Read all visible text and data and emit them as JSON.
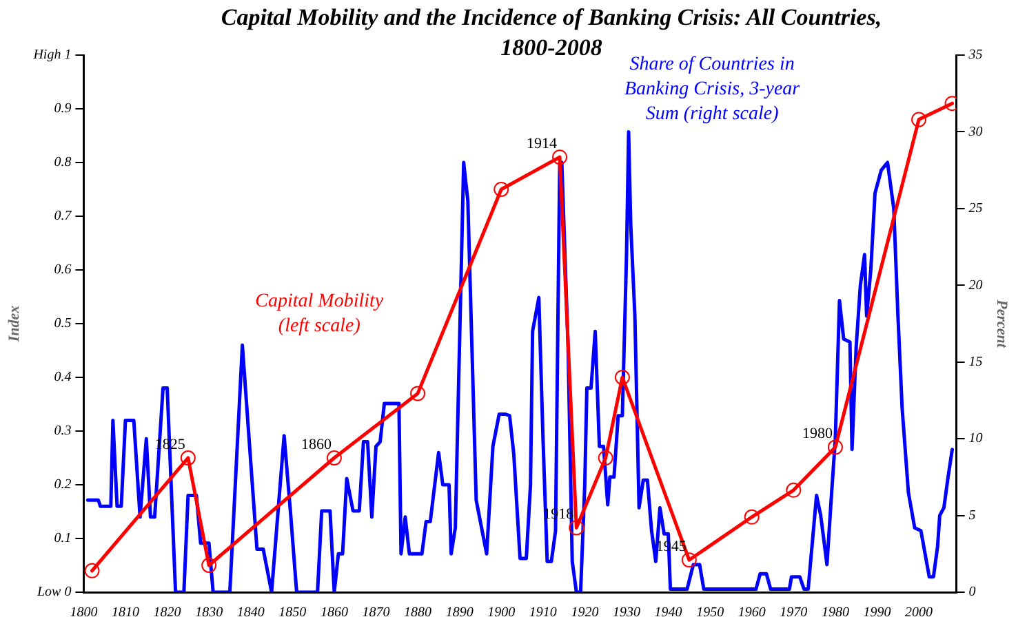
{
  "chart_data": {
    "type": "line",
    "title": "Capital Mobility and the Incidence of Banking Crisis: All Countries, 1800-2008",
    "ylabel": "Index",
    "y2label": "Percent",
    "xlim": [
      1800,
      2009
    ],
    "xticks": [
      1800,
      1810,
      1820,
      1830,
      1840,
      1850,
      1860,
      1870,
      1880,
      1890,
      1900,
      1910,
      1920,
      1930,
      1940,
      1950,
      1960,
      1970,
      1980,
      1990,
      2000
    ],
    "ylim": [
      0,
      1
    ],
    "yticks": [
      {
        "value": 0,
        "label": "Low 0"
      },
      0.1,
      0.2,
      0.3,
      0.4,
      0.5,
      0.6,
      0.7,
      0.8,
      0.9,
      {
        "value": 1,
        "label": "High 1"
      }
    ],
    "y2lim": [
      0,
      35
    ],
    "y2ticks": [
      0,
      5,
      10,
      15,
      20,
      25,
      30,
      35
    ],
    "grid": false,
    "legend": false,
    "series": [
      {
        "name": "Share of Countries in Banking Crisis, 3-year Sum (right scale)",
        "color": "#0000ff",
        "axis": "y2",
        "marker": "none",
        "x": [
          1801,
          1803.5,
          1804,
          1806.5,
          1807,
          1808,
          1809,
          1810,
          1812,
          1813.5,
          1815,
          1816,
          1817,
          1819,
          1820,
          1822,
          1824,
          1825,
          1827,
          1828,
          1830,
          1831,
          1835,
          1838,
          1841.5,
          1843,
          1845,
          1848,
          1849.5,
          1851,
          1856,
          1857,
          1859,
          1860,
          1861,
          1862,
          1863,
          1864.5,
          1866,
          1867,
          1868,
          1869,
          1870,
          1871,
          1872,
          1875.5,
          1876,
          1877,
          1878,
          1881,
          1882,
          1883,
          1885,
          1886,
          1887.5,
          1888,
          1889,
          1891,
          1892,
          1894,
          1895,
          1896.5,
          1898,
          1899.5,
          1901,
          1902,
          1903,
          1904.5,
          1906,
          1907,
          1907.5,
          1909,
          1910,
          1911,
          1912,
          1913,
          1914,
          1914.5,
          1916,
          1917,
          1918,
          1919,
          1920,
          1920.5,
          1921.5,
          1922.5,
          1923.5,
          1924.5,
          1925.5,
          1926,
          1927,
          1928,
          1929,
          1930,
          1930.5,
          1931,
          1932,
          1933,
          1934,
          1935,
          1936,
          1937,
          1938,
          1939,
          1940,
          1940.5,
          1944.5,
          1946,
          1947.5,
          1948.5,
          1961,
          1962,
          1963.5,
          1964.5,
          1969,
          1969.5,
          1971.5,
          1972.5,
          1973.5,
          1975.5,
          1976.5,
          1978,
          1979,
          1980,
          1981,
          1982,
          1983.5,
          1984,
          1985,
          1986,
          1987,
          1987.5,
          1988.5,
          1989.5,
          1991,
          1992.5,
          1994,
          1995,
          1996,
          1997.5,
          1999,
          2000.5,
          2002.5,
          2003.5,
          2004.5,
          2005,
          2006,
          2007,
          2008
        ],
        "values": [
          6,
          6,
          5.6,
          5.6,
          11.2,
          5.6,
          5.6,
          11.2,
          11.2,
          4.9,
          10,
          4.9,
          4.9,
          13.3,
          13.3,
          0,
          0,
          6.3,
          6.3,
          3.2,
          3.2,
          0,
          0,
          16.1,
          2.8,
          2.8,
          0,
          10.2,
          5.3,
          0,
          0,
          5.3,
          5.3,
          0,
          2.5,
          2.5,
          7.4,
          5.3,
          5.3,
          9.8,
          9.8,
          4.9,
          9.5,
          9.8,
          12.3,
          12.3,
          2.5,
          4.9,
          2.5,
          2.5,
          4.6,
          4.6,
          9.1,
          7,
          7,
          2.5,
          4.2,
          28,
          25.5,
          6,
          4.6,
          2.5,
          9.5,
          11.6,
          11.6,
          11.5,
          9,
          2.2,
          2.2,
          7,
          17,
          19.2,
          10,
          2,
          2,
          4,
          28,
          28,
          16,
          2,
          0,
          0,
          7,
          13.3,
          13.3,
          17,
          9.5,
          9.5,
          5.7,
          7.5,
          7.5,
          11.5,
          11.5,
          22,
          30,
          24,
          18,
          5.5,
          7.3,
          7.3,
          4,
          2,
          5.5,
          3.8,
          3.8,
          0.2,
          0.2,
          1.8,
          1.8,
          0.2,
          0.2,
          1.2,
          1.2,
          0.2,
          0.2,
          1,
          1,
          0.2,
          0.2,
          6.3,
          5,
          1.8,
          6,
          10,
          19,
          16.5,
          16.3,
          9.3,
          16,
          20,
          22,
          18,
          21,
          26,
          27.5,
          28,
          25,
          18,
          12,
          6.5,
          4.2,
          4,
          1,
          1,
          3,
          5,
          5.5,
          7.5,
          9.3
        ]
      },
      {
        "name": "Capital Mobility (left scale)",
        "color": "#ff0000",
        "marker": "circle",
        "x": [
          1802,
          1825,
          1830,
          1860,
          1880,
          1900,
          1914,
          1918,
          1925,
          1929,
          1945,
          1960,
          1970,
          1980,
          2000,
          2008
        ],
        "values": [
          0.04,
          0.25,
          0.05,
          0.25,
          0.37,
          0.75,
          0.81,
          0.12,
          0.25,
          0.4,
          0.06,
          0.14,
          0.19,
          0.27,
          0.88,
          0.91
        ]
      }
    ],
    "annotations": [
      {
        "text": "1825",
        "x": 1825,
        "y": 0.25
      },
      {
        "text": "1860",
        "x": 1860,
        "y": 0.25
      },
      {
        "text": "1914",
        "x": 1914,
        "y": 0.81
      },
      {
        "text": "1918",
        "x": 1918,
        "y": 0.12
      },
      {
        "text": "1945",
        "x": 1945,
        "y": 0.06
      },
      {
        "text": "1980",
        "x": 1980,
        "y": 0.27
      }
    ]
  }
}
